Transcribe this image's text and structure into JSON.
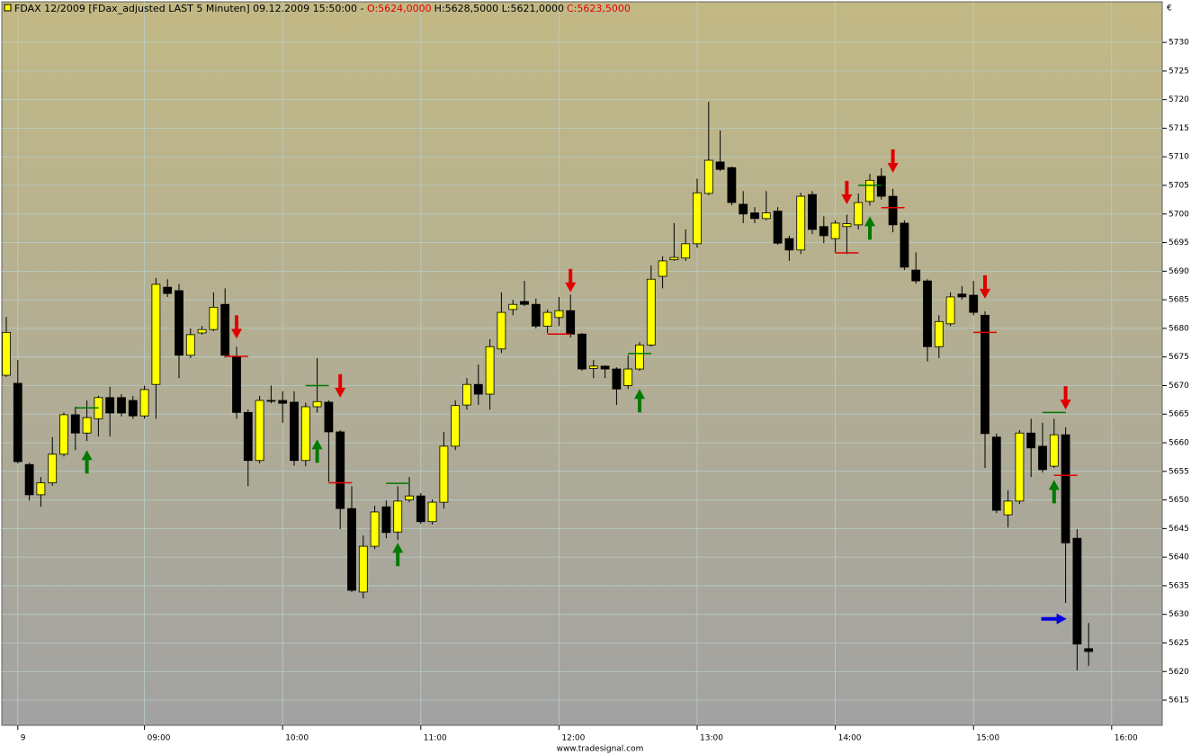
{
  "chart_data": {
    "type": "candlestick",
    "header": {
      "instrument": "FDAX 12/2009 [FDax_adjusted LAST 5 Minuten] 09.12.2009 15:50:00 - ",
      "open_text": "O:5624,0000",
      "high_low_text": "H:5628,5000 L:5621,0000",
      "close_text": "C:5623,5000"
    },
    "currency": "€",
    "footer": "www.tradesignal.com",
    "categories": [
      null,
      "9",
      null,
      null,
      null,
      null,
      null,
      null,
      null,
      null,
      null,
      null,
      "09:00",
      null,
      null,
      null,
      null,
      null,
      null,
      null,
      null,
      null,
      null,
      null,
      "10:00",
      null,
      null,
      null,
      null,
      null,
      null,
      null,
      null,
      null,
      null,
      null,
      "11:00",
      null,
      null,
      null,
      null,
      null,
      null,
      null,
      null,
      null,
      null,
      null,
      "12:00",
      null,
      null,
      null,
      null,
      null,
      null,
      null,
      null,
      null,
      null,
      null,
      "13:00",
      null,
      null,
      null,
      null,
      null,
      null,
      null,
      null,
      null,
      null,
      null,
      "14:00",
      null,
      null,
      null,
      null,
      null,
      null,
      null,
      null,
      null,
      null,
      null,
      "15:00",
      null,
      null,
      null,
      null,
      null,
      null,
      null,
      null,
      null,
      null,
      null,
      "16:00"
    ],
    "open": [
      5671.8,
      5670.4,
      5656.2,
      5650.9,
      5653,
      5658,
      5664.9,
      5661.7,
      5664.2,
      5667.9,
      5667.9,
      5667.4,
      5664.7,
      5670.2,
      5687.2,
      5686.6,
      5675.3,
      5679.2,
      5679.8,
      5684.2,
      5675.1,
      5665.3,
      5656.9,
      5667.4,
      5667.4,
      5667.1,
      5656.9,
      5666.3,
      5667.1,
      5661.9,
      5648.5,
      5633.9,
      5641.9,
      5648.8,
      5644.4,
      5650,
      5650.7,
      5646.2,
      5649.6,
      5659.4,
      5666.6,
      5670.2,
      5668.5,
      5676.4,
      5683.3,
      5684.7,
      5684.2,
      5680.4,
      5681.9,
      5683.1,
      5679,
      5673,
      5673.4,
      5672.9,
      5670,
      5672.9,
      5677.1,
      5689.1,
      5692,
      5692.3,
      5694.8,
      5703.6,
      5709.1,
      5708.1,
      5701.7,
      5700.2,
      5699.2,
      5700.5,
      5695.7,
      5693.7,
      5703.4,
      5697.8,
      5695.7,
      5697.8,
      5698.1,
      5702.2,
      5706.6,
      5703.1,
      5698.4,
      5690.2,
      5688.3,
      5676.8,
      5680.8,
      5686,
      5685.8,
      5682.3,
      5661,
      5647.4,
      5649.8,
      5661.7,
      5659.4,
      5655.9,
      5661.4,
      5643.3,
      5624,
      null,
      null
    ],
    "high": [
      5682,
      5674.5,
      5656.5,
      5654,
      5661,
      5665.3,
      5666.3,
      5667.4,
      5668.2,
      5669.8,
      5668.5,
      5668.2,
      5670,
      5688.8,
      5688.6,
      5687.8,
      5680,
      5680.4,
      5686.3,
      5687,
      5676.8,
      5665.8,
      5668.2,
      5670,
      5669,
      5669,
      5667,
      5674.8,
      5667.4,
      5662.2,
      5652.4,
      5643.8,
      5649,
      5649.9,
      5652.4,
      5654,
      5651.2,
      5650.1,
      5661.9,
      5667.4,
      5671.3,
      5673.7,
      5678.1,
      5686.3,
      5685,
      5688.3,
      5685.2,
      5683.3,
      5685.5,
      5685.9,
      5679.2,
      5674.5,
      5673.5,
      5673.2,
      5675.3,
      5677.6,
      5691,
      5692.6,
      5698.4,
      5697.3,
      5706.2,
      5719.6,
      5714.6,
      5708.3,
      5704,
      5701.2,
      5704,
      5701.2,
      5696.2,
      5703.7,
      5704,
      5699.6,
      5698.9,
      5699.9,
      5703.6,
      5707,
      5708,
      5704.4,
      5698.9,
      5693.3,
      5688.6,
      5682.3,
      5686.3,
      5687.4,
      5688.3,
      5683,
      5661.6,
      5651.7,
      5662.2,
      5664.2,
      5663.5,
      5664.2,
      5662.7,
      5644.9,
      5628.5,
      null,
      null
    ],
    "low": [
      5671.5,
      5656.4,
      5649.9,
      5648.8,
      5652.5,
      5657.6,
      5658.7,
      5660.3,
      5661.1,
      5661.1,
      5664.6,
      5664.2,
      5664.2,
      5664.2,
      5685.5,
      5671.3,
      5674.8,
      5678.9,
      5679.5,
      5674.9,
      5664.2,
      5652.4,
      5656.4,
      5666.9,
      5663.5,
      5656,
      5655.9,
      5665.3,
      5653.2,
      5644.9,
      5633.9,
      5632.8,
      5641.4,
      5643.3,
      5643,
      5649.6,
      5645.8,
      5645.7,
      5648.5,
      5658.7,
      5665.8,
      5666.6,
      5665.8,
      5675.7,
      5682.3,
      5683.9,
      5680,
      5679.2,
      5680.4,
      5678.4,
      5672.6,
      5671.3,
      5671.3,
      5666.6,
      5669.4,
      5672.6,
      5676.8,
      5687,
      5691.8,
      5691.8,
      5694.1,
      5703.3,
      5707.5,
      5701.5,
      5698.4,
      5698.4,
      5698.9,
      5694.6,
      5691.8,
      5693,
      5696.5,
      5694.9,
      5693.3,
      5693,
      5697.3,
      5701.5,
      5702.5,
      5696.8,
      5690.2,
      5687.8,
      5674.2,
      5674.8,
      5680.4,
      5685,
      5682.3,
      5655.6,
      5647.7,
      5645.2,
      5649.3,
      5654,
      5654.8,
      5655.6,
      5632,
      5620.2,
      5621,
      null,
      null
    ],
    "close": [
      5679.3,
      5656.7,
      5650.9,
      5653,
      5658,
      5664.9,
      5661.7,
      5664.4,
      5667.9,
      5665.2,
      5665.2,
      5664.7,
      5669.3,
      5687.7,
      5686.1,
      5675.3,
      5678.9,
      5679.8,
      5683.7,
      5675.3,
      5665.3,
      5656.9,
      5667.4,
      5667.3,
      5666.9,
      5656.9,
      5666.3,
      5667.2,
      5661.9,
      5648.5,
      5634.2,
      5641.9,
      5647.9,
      5644.3,
      5649.8,
      5650.7,
      5646.2,
      5649.6,
      5659.4,
      5666.5,
      5670.2,
      5668.5,
      5676.8,
      5682.8,
      5684.2,
      5684.2,
      5680.4,
      5682.8,
      5683.1,
      5679,
      5672.9,
      5673.4,
      5672.9,
      5669.4,
      5672.9,
      5677.1,
      5688.6,
      5691.8,
      5692.4,
      5694.8,
      5703.7,
      5709.4,
      5707.8,
      5702,
      5700,
      5699.2,
      5700.2,
      5694.9,
      5693.7,
      5703.1,
      5697.3,
      5696.2,
      5698.4,
      5698.3,
      5702,
      5705.9,
      5703.1,
      5698.1,
      5690.7,
      5688.3,
      5676.8,
      5681.2,
      5685.5,
      5685.5,
      5682.8,
      5661.6,
      5648.2,
      5649.8,
      5661.7,
      5659.1,
      5655.3,
      5661.4,
      5642.5,
      5624.8,
      5623.5,
      null,
      null
    ],
    "up_color": "#ffff00",
    "down_color": "#000000",
    "buy_signals": {
      "color": "#007a00",
      "points": [
        {
          "index": 7,
          "value": 5658.7
        },
        {
          "index": 27,
          "value": 5660.6
        },
        {
          "index": 34,
          "value": 5642.5
        },
        {
          "index": 55,
          "value": 5669.4
        },
        {
          "index": 75,
          "value": 5699.6
        },
        {
          "index": 91,
          "value": 5653.5
        }
      ]
    },
    "sell_signals": {
      "color": "#e00000",
      "points": [
        {
          "index": 20,
          "value": 5678.2
        },
        {
          "index": 29,
          "value": 5667.9
        },
        {
          "index": 49,
          "value": 5686.3
        },
        {
          "index": 73,
          "value": 5701.7
        },
        {
          "index": 77,
          "value": 5707.2
        },
        {
          "index": 85,
          "value": 5685.2
        },
        {
          "index": 92,
          "value": 5665.8
        }
      ]
    },
    "exit_signal": {
      "color": "#0000e0",
      "index": 92,
      "value": 5629.2
    },
    "long_levels": {
      "color": "#007a00",
      "points": [
        {
          "index": 7,
          "value": 5666.1
        },
        {
          "index": 27,
          "value": 5670
        },
        {
          "index": 34,
          "value": 5652.9
        },
        {
          "index": 55,
          "value": 5675.6
        },
        {
          "index": 75,
          "value": 5705
        },
        {
          "index": 91,
          "value": 5665.3
        }
      ]
    },
    "short_levels": {
      "color": "#e00000",
      "points": [
        {
          "index": 20,
          "value": 5675.1
        },
        {
          "index": 29,
          "value": 5653
        },
        {
          "index": 48,
          "value": 5679
        },
        {
          "index": 73,
          "value": 5693.2
        },
        {
          "index": 77,
          "value": 5701.1
        },
        {
          "index": 85,
          "value": 5679.3
        },
        {
          "index": 92,
          "value": 5654.3
        }
      ]
    },
    "ylim": [
      5610.6,
      5737.1
    ],
    "yticks": [
      5615,
      5620,
      5625,
      5630,
      5635,
      5640,
      5645,
      5650,
      5655,
      5660,
      5665,
      5670,
      5675,
      5680,
      5685,
      5690,
      5695,
      5700,
      5705,
      5710,
      5715,
      5720,
      5725,
      5730
    ],
    "grid": true
  }
}
